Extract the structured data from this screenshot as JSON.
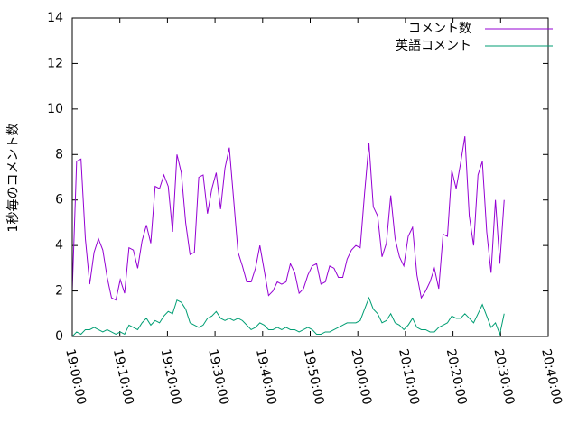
{
  "chart_data": {
    "type": "line",
    "ylabel": "1秒毎のコメント数",
    "x": [
      "19:00:00",
      "19:00:55",
      "19:01:50",
      "19:02:45",
      "19:03:40",
      "19:04:35",
      "19:05:30",
      "19:06:25",
      "19:07:20",
      "19:08:15",
      "19:09:10",
      "19:10:05",
      "19:11:00",
      "19:11:55",
      "19:12:50",
      "19:13:45",
      "19:14:40",
      "19:15:35",
      "19:16:30",
      "19:17:25",
      "19:18:20",
      "19:19:15",
      "19:20:10",
      "19:21:05",
      "19:22:00",
      "19:22:55",
      "19:23:50",
      "19:24:45",
      "19:25:40",
      "19:26:35",
      "19:27:30",
      "19:28:25",
      "19:29:20",
      "19:30:15",
      "19:31:10",
      "19:32:05",
      "19:33:00",
      "19:33:55",
      "19:34:50",
      "19:35:45",
      "19:36:40",
      "19:37:35",
      "19:38:30",
      "19:39:25",
      "19:40:20",
      "19:41:15",
      "19:42:10",
      "19:43:05",
      "19:44:00",
      "19:44:55",
      "19:45:50",
      "19:46:45",
      "19:47:40",
      "19:48:35",
      "19:49:30",
      "19:50:25",
      "19:51:20",
      "19:52:15",
      "19:53:10",
      "19:54:05",
      "19:55:00",
      "19:55:55",
      "19:56:50",
      "19:57:45",
      "19:58:40",
      "19:59:35",
      "20:00:30",
      "20:01:25",
      "20:02:20",
      "20:03:15",
      "20:04:10",
      "20:05:05",
      "20:06:00",
      "20:06:55",
      "20:07:50",
      "20:08:45",
      "20:09:40",
      "20:10:35",
      "20:11:30",
      "20:12:25",
      "20:13:20",
      "20:14:15",
      "20:15:10",
      "20:16:05",
      "20:17:00",
      "20:17:55",
      "20:18:50",
      "20:19:45",
      "20:20:40",
      "20:21:35",
      "20:22:30",
      "20:23:25",
      "20:24:20",
      "20:25:15",
      "20:26:10",
      "20:27:05",
      "20:28:00",
      "20:28:55",
      "20:29:50",
      "20:30:45"
    ],
    "series": [
      {
        "name": "コメント数",
        "color": "#9400d3",
        "values": [
          2.0,
          7.7,
          7.8,
          4.3,
          2.3,
          3.7,
          4.3,
          3.8,
          2.6,
          1.7,
          1.6,
          2.5,
          1.9,
          3.9,
          3.8,
          3.0,
          4.2,
          4.9,
          4.1,
          6.6,
          6.5,
          7.1,
          6.6,
          4.6,
          8.0,
          7.2,
          5.0,
          3.6,
          3.7,
          7.0,
          7.1,
          5.4,
          6.5,
          7.2,
          5.6,
          7.4,
          8.3,
          6.0,
          3.7,
          3.1,
          2.4,
          2.4,
          3.0,
          4.0,
          2.9,
          1.8,
          2.0,
          2.4,
          2.3,
          2.4,
          3.2,
          2.8,
          1.9,
          2.1,
          2.7,
          3.1,
          3.2,
          2.3,
          2.4,
          3.1,
          3.0,
          2.6,
          2.6,
          3.4,
          3.8,
          4.0,
          3.9,
          6.3,
          8.5,
          5.7,
          5.3,
          3.5,
          4.1,
          6.2,
          4.3,
          3.5,
          3.1,
          4.4,
          4.8,
          2.7,
          1.7,
          2.0,
          2.4,
          3.0,
          2.1,
          4.5,
          4.4,
          7.3,
          6.5,
          7.6,
          8.8,
          5.3,
          4.0,
          7.1,
          7.7,
          4.6,
          2.8,
          6.0,
          3.2,
          6.0
        ]
      },
      {
        "name": "英語コメント",
        "color": "#009e73",
        "values": [
          0.0,
          0.2,
          0.1,
          0.3,
          0.3,
          0.4,
          0.3,
          0.2,
          0.3,
          0.2,
          0.1,
          0.2,
          0.1,
          0.5,
          0.4,
          0.3,
          0.6,
          0.8,
          0.5,
          0.7,
          0.6,
          0.9,
          1.1,
          1.0,
          1.6,
          1.5,
          1.2,
          0.6,
          0.5,
          0.4,
          0.5,
          0.8,
          0.9,
          1.1,
          0.8,
          0.7,
          0.8,
          0.7,
          0.8,
          0.7,
          0.5,
          0.3,
          0.4,
          0.6,
          0.5,
          0.3,
          0.3,
          0.4,
          0.3,
          0.4,
          0.3,
          0.3,
          0.2,
          0.3,
          0.4,
          0.3,
          0.1,
          0.1,
          0.2,
          0.2,
          0.3,
          0.4,
          0.5,
          0.6,
          0.6,
          0.6,
          0.7,
          1.2,
          1.7,
          1.2,
          1.0,
          0.6,
          0.7,
          1.0,
          0.6,
          0.5,
          0.3,
          0.5,
          0.8,
          0.4,
          0.3,
          0.3,
          0.2,
          0.2,
          0.4,
          0.5,
          0.6,
          0.9,
          0.8,
          0.8,
          1.0,
          0.8,
          0.6,
          1.0,
          1.4,
          0.9,
          0.4,
          0.6,
          0.1,
          1.0
        ]
      }
    ],
    "xlim": [
      "19:00:00",
      "20:40:00"
    ],
    "xticks": [
      "19:00:00",
      "19:10:00",
      "19:20:00",
      "19:30:00",
      "19:40:00",
      "19:50:00",
      "20:00:00",
      "20:10:00",
      "20:20:00",
      "20:30:00",
      "20:40:00"
    ],
    "ylim": [
      0,
      14
    ],
    "yticks": [
      0,
      2,
      4,
      6,
      8,
      10,
      12,
      14
    ],
    "legend": "top-right"
  }
}
